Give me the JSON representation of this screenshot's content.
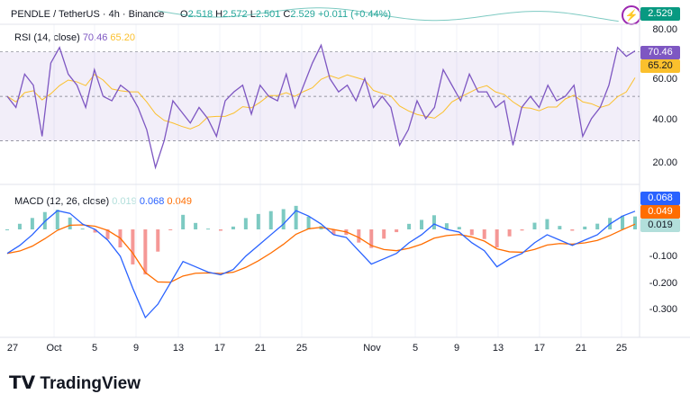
{
  "header": {
    "symbol": "PENDLE / TetherUS · 4h · Binance",
    "o_label": "O",
    "o": "2.518",
    "h_label": "H",
    "h": "2.572",
    "l_label": "L",
    "l": "2.501",
    "c_label": "C",
    "c": "2.529",
    "change": "+0.011 (+0.44%)",
    "price_tag": "2.529"
  },
  "colors": {
    "up": "#26a69a",
    "down": "#ef5350",
    "rsi": "#7e57c2",
    "rsi_signal": "#fbc02d",
    "macd": "#2962ff",
    "macd_signal": "#ff6d00",
    "hist_up": "#26a69a",
    "hist_down": "#ef5350"
  },
  "chart_data": [
    {
      "type": "line",
      "title": "RSI (14, close)",
      "value": "70.46",
      "signal_value": "65.20",
      "ylim": [
        10,
        85
      ],
      "yticks": [
        "80.00",
        "60.00",
        "40.00",
        "20.00"
      ],
      "band": [
        30,
        70
      ],
      "rsi": [
        50,
        45,
        60,
        55,
        32,
        65,
        72,
        60,
        55,
        45,
        62,
        50,
        48,
        55,
        52,
        45,
        35,
        18,
        30,
        48,
        43,
        38,
        45,
        40,
        32,
        48,
        52,
        55,
        42,
        55,
        50,
        48,
        60,
        45,
        55,
        65,
        73,
        58,
        52,
        55,
        48,
        58,
        45,
        50,
        45,
        28,
        35,
        48,
        40,
        45,
        62,
        55,
        48,
        60,
        52,
        52,
        45,
        48,
        28,
        45,
        50,
        45,
        55,
        48,
        50,
        55,
        32,
        40,
        45,
        55,
        72,
        68,
        70.46
      ]
    },
    {
      "type": "line",
      "title": "MACD (12, 26, close)",
      "hist_value": "0.019",
      "macd_value": "0.068",
      "signal_value": "0.049",
      "ylim": [
        -0.37,
        0.1
      ],
      "yticks": [
        "-0.100",
        "-0.200",
        "-0.300"
      ],
      "macd": [
        -0.09,
        -0.06,
        -0.02,
        0.03,
        0.07,
        0.06,
        0.02,
        0.0,
        -0.04,
        -0.1,
        -0.22,
        -0.33,
        -0.28,
        -0.2,
        -0.12,
        -0.14,
        -0.16,
        -0.17,
        -0.15,
        -0.1,
        -0.06,
        -0.02,
        0.02,
        0.07,
        0.05,
        0.02,
        -0.02,
        -0.03,
        -0.08,
        -0.13,
        -0.11,
        -0.09,
        -0.05,
        -0.02,
        0.02,
        0.0,
        -0.01,
        -0.05,
        -0.08,
        -0.14,
        -0.11,
        -0.09,
        -0.05,
        -0.02,
        -0.04,
        -0.06,
        -0.04,
        -0.02,
        0.02,
        0.05,
        0.068
      ]
    },
    {
      "type": "axis",
      "xticks": [
        "27",
        "Oct",
        "5",
        "9",
        "13",
        "17",
        "21",
        "25",
        "Nov",
        "5",
        "9",
        "13",
        "17",
        "21",
        "25"
      ]
    }
  ],
  "right_axis": {
    "rsi_tag": "70.46",
    "rsi_signal_tag": "65.20",
    "macd_tag": "0.068",
    "signal_tag": "0.049",
    "hist_tag": "0.019"
  },
  "brand": "TradingView"
}
